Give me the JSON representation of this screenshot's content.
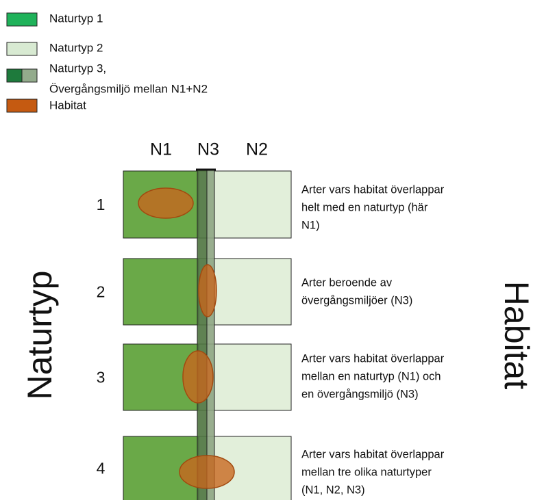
{
  "legend": [
    {
      "label": "Naturtyp 1"
    },
    {
      "label": "Naturtyp 2"
    },
    {
      "label": [
        "Naturtyp 3,",
        "Övergångsmiljö mellan N1+N2"
      ]
    },
    {
      "label": "Habitat"
    }
  ],
  "columns": [
    "N1",
    "N3",
    "N2"
  ],
  "rows": [
    {
      "number": "1",
      "description": [
        "Arter vars habitat överlappar",
        "helt med en naturtyp (här",
        "N1)"
      ]
    },
    {
      "number": "2",
      "description": [
        "Arter beroende av",
        "övergångsmiljöer (N3)"
      ]
    },
    {
      "number": "3",
      "description": [
        "Arter vars habitat överlappar",
        "mellan en naturtyp (N1) och",
        "en övergångsmiljö (N3)"
      ]
    },
    {
      "number": "4",
      "description": [
        "Arter vars habitat överlappar",
        "mellan tre olika naturtyper",
        "(N1, N2, N3)"
      ]
    }
  ],
  "left_label": "Naturtyp",
  "right_label": "Habitat"
}
